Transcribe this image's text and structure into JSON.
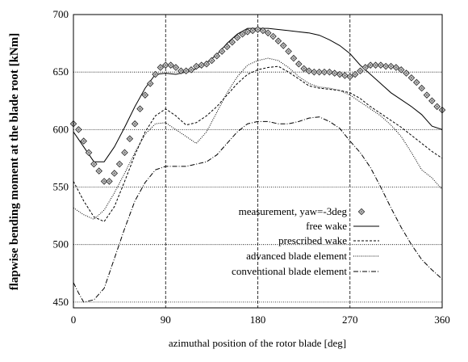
{
  "chart_data": {
    "type": "line",
    "title": "",
    "xlabel": "azimuthal position of the rotor blade [deg]",
    "ylabel": "flapwise bending moment at the blade root [kNm]",
    "xlim": [
      0,
      360
    ],
    "ylim": [
      445,
      700
    ],
    "xticks": [
      0,
      90,
      180,
      270,
      360
    ],
    "yticks": [
      450,
      500,
      550,
      600,
      650,
      700
    ],
    "grid": "dotted major lines, dashed vertical lines at 90/180/270",
    "legend_position": "lower-right",
    "series": [
      {
        "name": "measurement, yaw=-3deg",
        "style": "diamond-markers",
        "x": [
          0,
          5,
          10,
          15,
          20,
          25,
          30,
          35,
          40,
          45,
          50,
          55,
          60,
          65,
          70,
          75,
          80,
          85,
          90,
          95,
          100,
          105,
          110,
          115,
          120,
          125,
          130,
          135,
          140,
          145,
          150,
          155,
          160,
          165,
          170,
          175,
          180,
          185,
          190,
          195,
          200,
          205,
          210,
          215,
          220,
          225,
          230,
          235,
          240,
          245,
          250,
          255,
          260,
          265,
          270,
          275,
          280,
          285,
          290,
          295,
          300,
          305,
          310,
          315,
          320,
          325,
          330,
          335,
          340,
          345,
          350,
          355,
          360
        ],
        "y": [
          605,
          600,
          590,
          580,
          570,
          564,
          555,
          555,
          562,
          570,
          580,
          592,
          605,
          618,
          630,
          640,
          648,
          654,
          656,
          656,
          654,
          651,
          651,
          652,
          655,
          656,
          657,
          660,
          664,
          668,
          672,
          676,
          680,
          683,
          685,
          686,
          687,
          686,
          684,
          681,
          677,
          673,
          668,
          662,
          657,
          653,
          651,
          650,
          650,
          650,
          650,
          649,
          648,
          647,
          646,
          648,
          651,
          654,
          656,
          656,
          656,
          655,
          655,
          654,
          652,
          649,
          645,
          641,
          636,
          630,
          625,
          620,
          617
        ]
      },
      {
        "name": "free wake",
        "style": "solid",
        "x": [
          0,
          10,
          20,
          30,
          40,
          50,
          60,
          70,
          80,
          90,
          100,
          110,
          120,
          130,
          140,
          150,
          160,
          170,
          180,
          190,
          200,
          210,
          220,
          230,
          240,
          250,
          260,
          270,
          280,
          290,
          300,
          310,
          320,
          330,
          340,
          350,
          360
        ],
        "y": [
          598,
          585,
          572,
          572,
          585,
          602,
          620,
          636,
          648,
          649,
          648,
          650,
          653,
          658,
          665,
          675,
          683,
          688,
          688,
          688,
          687,
          686,
          685,
          684,
          682,
          678,
          673,
          666,
          656,
          648,
          640,
          632,
          626,
          620,
          613,
          603,
          600
        ]
      },
      {
        "name": "prescribed wake",
        "style": "dashed",
        "x": [
          0,
          10,
          20,
          30,
          40,
          50,
          60,
          70,
          80,
          90,
          100,
          110,
          120,
          130,
          140,
          150,
          160,
          170,
          180,
          190,
          200,
          210,
          220,
          230,
          240,
          250,
          260,
          270,
          280,
          290,
          300,
          310,
          320,
          330,
          340,
          350,
          360
        ],
        "y": [
          555,
          538,
          524,
          520,
          533,
          555,
          578,
          598,
          612,
          618,
          612,
          604,
          606,
          612,
          620,
          630,
          640,
          648,
          652,
          654,
          655,
          650,
          644,
          638,
          636,
          635,
          634,
          632,
          627,
          620,
          614,
          608,
          602,
          595,
          588,
          581,
          575
        ]
      },
      {
        "name": "advanced blade element",
        "style": "dotted",
        "x": [
          0,
          10,
          20,
          30,
          40,
          50,
          60,
          70,
          80,
          90,
          100,
          110,
          120,
          130,
          140,
          150,
          160,
          170,
          180,
          190,
          200,
          210,
          220,
          230,
          240,
          250,
          260,
          270,
          280,
          290,
          300,
          310,
          320,
          330,
          340,
          350,
          360
        ],
        "y": [
          532,
          526,
          522,
          530,
          545,
          562,
          580,
          596,
          605,
          606,
          600,
          594,
          588,
          598,
          615,
          632,
          646,
          656,
          660,
          662,
          660,
          654,
          646,
          640,
          637,
          636,
          634,
          630,
          624,
          618,
          612,
          604,
          594,
          580,
          565,
          558,
          548
        ]
      },
      {
        "name": "conventional blade element",
        "style": "dash-dot",
        "x": [
          0,
          5,
          10,
          20,
          30,
          40,
          50,
          60,
          70,
          80,
          90,
          100,
          110,
          120,
          130,
          140,
          150,
          160,
          170,
          180,
          190,
          200,
          210,
          220,
          230,
          240,
          250,
          260,
          270,
          280,
          290,
          300,
          310,
          320,
          330,
          340,
          350,
          360
        ],
        "y": [
          467,
          458,
          450,
          452,
          462,
          488,
          514,
          538,
          554,
          565,
          568,
          568,
          568,
          570,
          572,
          578,
          588,
          598,
          605,
          607,
          607,
          605,
          605,
          607,
          610,
          611,
          607,
          601,
          590,
          580,
          567,
          550,
          532,
          515,
          500,
          487,
          478,
          470
        ]
      }
    ]
  }
}
